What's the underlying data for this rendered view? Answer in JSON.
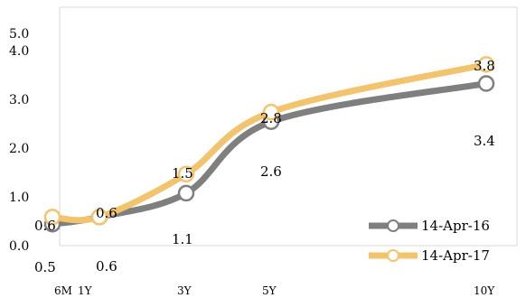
{
  "chart_data": {
    "type": "line",
    "x": [
      "6M",
      "1Y",
      "3Y",
      "5Y",
      "10Y"
    ],
    "x_years": [
      0.5,
      1,
      3,
      5,
      10
    ],
    "ylim": [
      0,
      5
    ],
    "yticks": [
      "0.0",
      "1.0",
      "2.0",
      "3.0",
      "4.0",
      "5.0"
    ],
    "grid": false,
    "legend_position": "bottom-right",
    "series": [
      {
        "name": "14-Apr-16",
        "color": "#7f7f7f",
        "values": [
          0.45,
          0.6,
          1.1,
          2.6,
          3.4
        ],
        "labels": [
          "0.5",
          "0.6",
          "1.1",
          "2.6",
          "3.4"
        ]
      },
      {
        "name": "14-Apr-17",
        "color": "#f2c46d",
        "values": [
          0.6,
          0.6,
          1.5,
          2.8,
          3.8
        ],
        "labels": [
          "0.6",
          "0.6",
          "1.5",
          "2.8",
          "3.8"
        ]
      }
    ]
  }
}
